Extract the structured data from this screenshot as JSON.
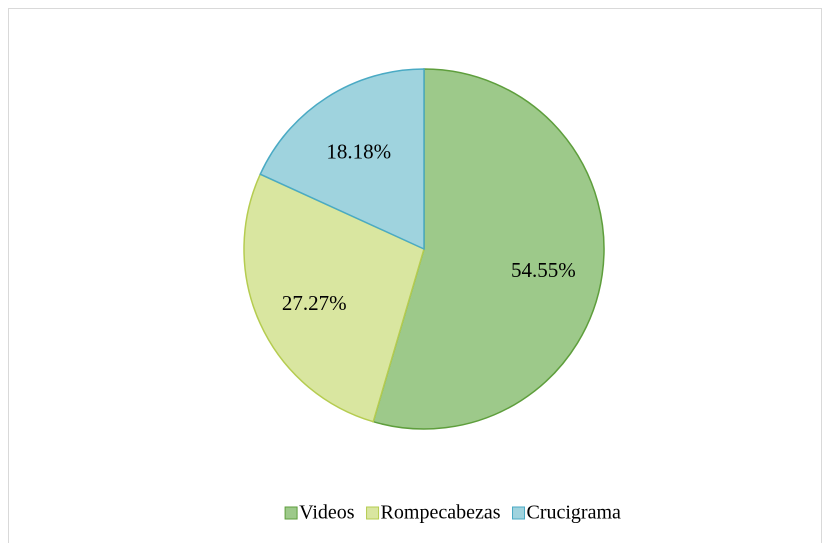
{
  "chart_data": {
    "type": "pie",
    "categories": [
      "Videos",
      "Rompecabezas",
      "Crucigrama"
    ],
    "values": [
      54.55,
      27.27,
      18.18
    ],
    "value_labels": [
      "54.55%",
      "27.27%",
      "18.18%"
    ],
    "colors": [
      "#9dc98a",
      "#d9e6a0",
      "#9fd3de"
    ],
    "edge_colors": [
      "#5e9e3c",
      "#b5cc50",
      "#4aaac4"
    ],
    "legend": "bottom"
  }
}
